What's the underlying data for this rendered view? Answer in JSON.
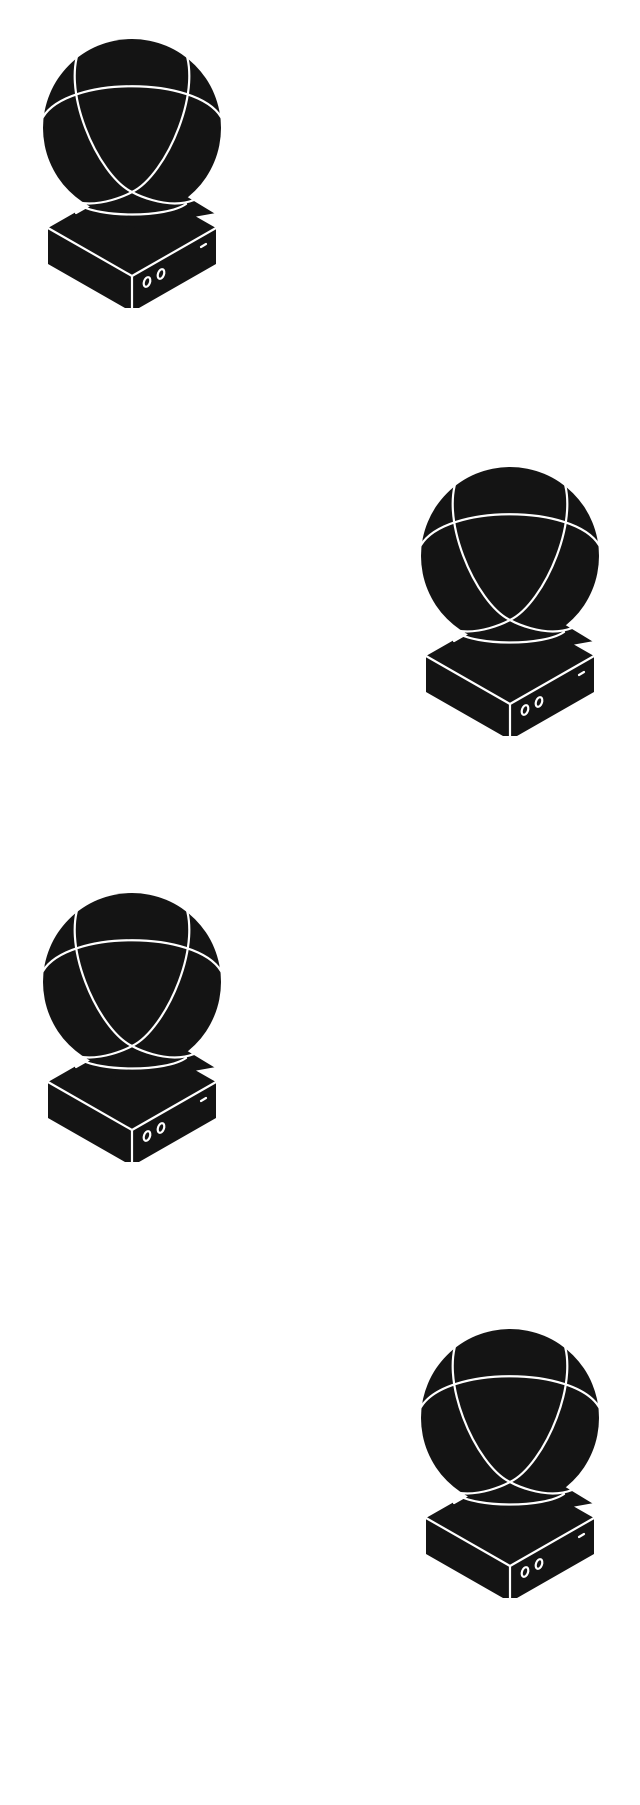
{
  "colors": {
    "background": "#ffffff",
    "icon_fill": "#141414",
    "icon_line": "#ffffff"
  },
  "icons": [
    {
      "name": "sphere-on-base-icon",
      "count": 4
    }
  ]
}
